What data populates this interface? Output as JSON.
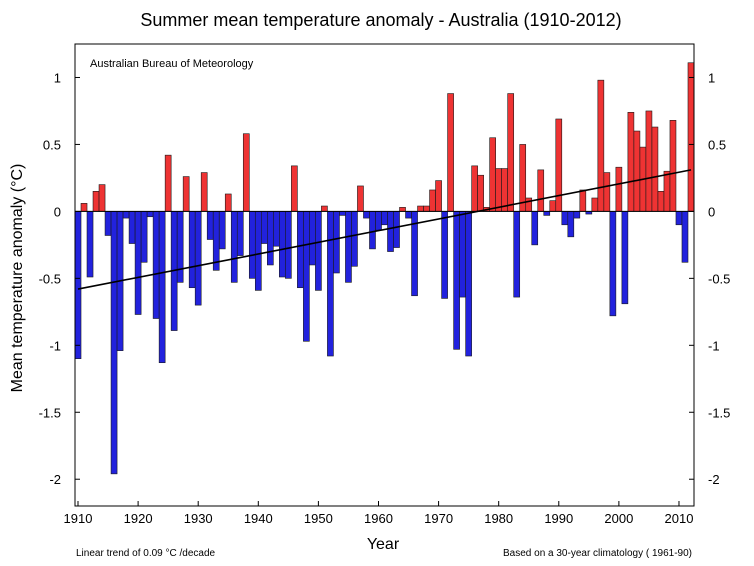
{
  "chart_data": {
    "type": "bar",
    "title": "Summer mean temperature anomaly - Australia (1910-2012)",
    "xlabel": "Year",
    "ylabel": "Mean temperature anomaly (°C)",
    "credit": "Australian Bureau of Meteorology",
    "footnote_left": "Linear  trend of 0.09   °C /decade",
    "footnote_right": "Based on a 30-year climatology ( 1961-90)",
    "xlim": [
      1909.5,
      2012.5
    ],
    "ylim": [
      -2.2,
      1.25
    ],
    "x_ticks": [
      1910,
      1920,
      1930,
      1940,
      1950,
      1960,
      1970,
      1980,
      1990,
      2000,
      2010
    ],
    "y_ticks": [
      1,
      0.5,
      0,
      -0.5,
      -1,
      -1.5,
      -2
    ],
    "y_tick_labels": [
      "1",
      "0.5",
      "0",
      "-0.5",
      "-1",
      "-1.5",
      "-2"
    ],
    "x": [
      1910,
      1911,
      1912,
      1913,
      1914,
      1915,
      1916,
      1917,
      1918,
      1919,
      1920,
      1921,
      1922,
      1923,
      1924,
      1925,
      1926,
      1927,
      1928,
      1929,
      1930,
      1931,
      1932,
      1933,
      1934,
      1935,
      1936,
      1937,
      1938,
      1939,
      1940,
      1941,
      1942,
      1943,
      1944,
      1945,
      1946,
      1947,
      1948,
      1949,
      1950,
      1951,
      1952,
      1953,
      1954,
      1955,
      1956,
      1957,
      1958,
      1959,
      1960,
      1961,
      1962,
      1963,
      1964,
      1965,
      1966,
      1967,
      1968,
      1969,
      1970,
      1971,
      1972,
      1973,
      1974,
      1975,
      1976,
      1977,
      1978,
      1979,
      1980,
      1981,
      1982,
      1983,
      1984,
      1985,
      1986,
      1987,
      1988,
      1989,
      1990,
      1991,
      1992,
      1993,
      1994,
      1995,
      1996,
      1997,
      1998,
      1999,
      2000,
      2001,
      2002,
      2003,
      2004,
      2005,
      2006,
      2007,
      2008,
      2009,
      2010,
      2011,
      2012
    ],
    "values": [
      -1.1,
      0.06,
      -0.49,
      0.15,
      0.2,
      -0.18,
      -1.96,
      -1.04,
      -0.05,
      -0.24,
      -0.77,
      -0.38,
      -0.04,
      -0.8,
      -1.13,
      0.42,
      -0.89,
      -0.53,
      0.26,
      -0.57,
      -0.7,
      0.29,
      -0.21,
      -0.44,
      -0.28,
      0.13,
      -0.53,
      -0.33,
      0.58,
      -0.5,
      -0.59,
      -0.24,
      -0.4,
      -0.26,
      -0.49,
      -0.5,
      0.34,
      -0.57,
      -0.97,
      -0.4,
      -0.59,
      0.04,
      -1.08,
      -0.46,
      -0.03,
      -0.53,
      -0.41,
      0.19,
      -0.05,
      -0.28,
      -0.14,
      -0.1,
      -0.3,
      -0.27,
      0.03,
      -0.05,
      -0.63,
      0.04,
      0.04,
      0.16,
      0.23,
      -0.65,
      0.88,
      -1.03,
      -0.64,
      -1.08,
      0.34,
      0.27,
      0.03,
      0.55,
      0.32,
      0.32,
      0.88,
      -0.64,
      0.5,
      0.1,
      -0.25,
      0.31,
      -0.03,
      0.08,
      0.69,
      -0.1,
      -0.19,
      -0.05,
      0.16,
      -0.02,
      0.1,
      0.98,
      0.29,
      -0.78,
      0.33,
      -0.69,
      0.74,
      0.6,
      0.48,
      0.75,
      0.63,
      0.15,
      0.3,
      0.68,
      -0.1,
      -0.38,
      1.11
    ],
    "colors": {
      "positive": "#ee3333",
      "negative": "#2222dd",
      "trend": "#000000",
      "edge": "#1a1a1a"
    },
    "trend": {
      "x": [
        1910,
        2012
      ],
      "y": [
        -0.58,
        0.31
      ]
    },
    "grid": false,
    "legend": "none"
  }
}
